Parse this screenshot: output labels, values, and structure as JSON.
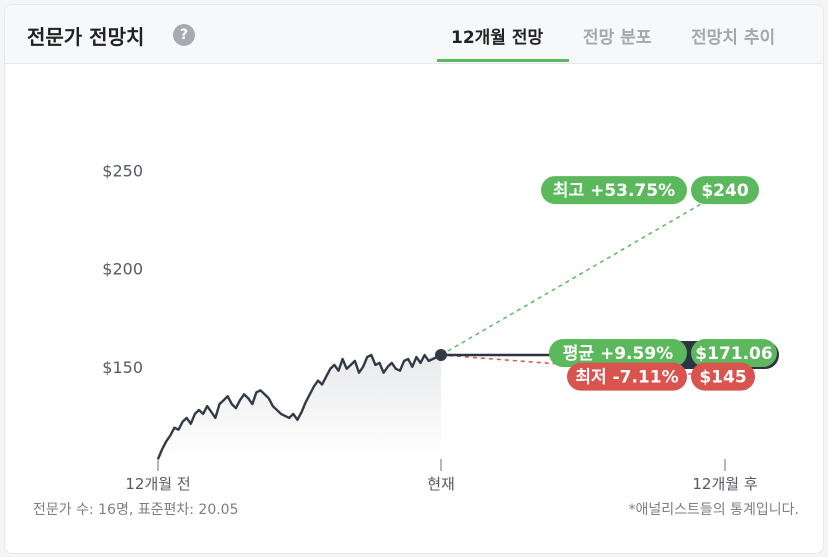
{
  "header": {
    "title": "전문가 전망치",
    "help": "?",
    "tabs": [
      "12개월 전망",
      "전망 분포",
      "전망치 추이"
    ]
  },
  "colors": {
    "high": "#5cb85c",
    "low": "#d9534f",
    "price": "#333a47",
    "avg_dark": "#2b3440"
  },
  "chart_data": {
    "type": "line",
    "y_tick_labels": [
      "$250",
      "$200",
      "$150"
    ],
    "y_ticks": [
      250,
      200,
      150
    ],
    "x_tick_labels": [
      "12개월 전",
      "현재",
      "12개월 후"
    ],
    "ylim": [
      100,
      265
    ],
    "current_price": 156,
    "targets": {
      "high": {
        "label": "최고 +53.75%",
        "value_label": "$240",
        "value": 240
      },
      "average": {
        "label": "평균 +9.59%",
        "value_label": "$171.06",
        "value": 171.06
      },
      "low": {
        "label": "최저 -7.11%",
        "value_label": "$145",
        "value": 145
      }
    },
    "price_series": [
      103,
      108,
      112,
      115,
      119,
      118,
      122,
      124,
      121,
      126,
      128,
      126,
      130,
      127,
      124,
      131,
      133,
      135,
      131,
      129,
      133,
      136,
      134,
      131,
      137,
      138,
      136,
      134,
      130,
      128,
      126,
      125,
      124,
      126,
      123,
      127,
      132,
      136,
      140,
      143,
      141,
      145,
      149,
      151,
      148,
      154,
      149,
      151,
      153,
      147,
      150,
      155,
      156,
      151,
      152,
      147,
      150,
      152,
      149,
      148,
      153,
      154,
      150,
      155,
      152,
      156,
      153,
      154,
      155,
      156
    ]
  },
  "footer": {
    "left": "전문가 수: 16명, 표준편차: 20.05",
    "right": "*애널리스트들의 통계입니다."
  }
}
